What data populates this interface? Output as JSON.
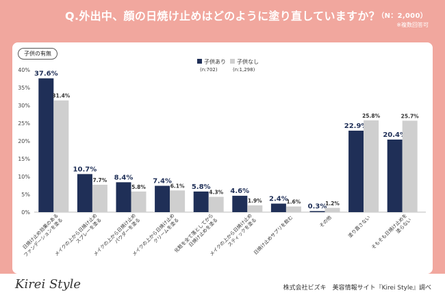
{
  "header": {
    "question": "Q.外出中、顔の日焼け止めはどのように塗り直していますか？",
    "n_label": "（N：2,000）",
    "note": "※複数回答可"
  },
  "badge": "子供の有無",
  "footer": {
    "logo": "Kirei Style",
    "credit": "株式会社ビズキ　美容情報サイト『Kirei Style』調べ"
  },
  "colors": {
    "series1": "#1f2f57",
    "series2": "#cfcfcf",
    "accent": "#f1a79e"
  },
  "chart_data": {
    "type": "bar",
    "categories": [
      "日焼け止め効果のある\nファンデーションを塗る",
      "メイクの上から日焼け止め\nスプレーを塗る",
      "メイクの上から日焼け止め\nパウダーを塗る",
      "メイクの上から日焼け止め\nクリームを塗る",
      "化粧を全て落としてから\n日焼け止めを塗る",
      "メイクの上から日焼け止め\nスティックを塗る",
      "日焼け止めサプリを飲む",
      "その他",
      "塗り直さない",
      "そもそも日焼け止めを\n塗らない"
    ],
    "series": [
      {
        "name": "子供あり",
        "sub": "(n:702)",
        "values": [
          37.6,
          10.7,
          8.4,
          7.4,
          5.8,
          4.6,
          2.4,
          0.3,
          22.9,
          20.4
        ],
        "labels": [
          "37.6%",
          "10.7%",
          "8.4%",
          "7.4%",
          "5.8%",
          "4.6%",
          "2.4%",
          "0.3%",
          "22.9%",
          "20.4%"
        ]
      },
      {
        "name": "子供なし",
        "sub": "(n:1,298)",
        "values": [
          31.4,
          7.7,
          5.8,
          6.1,
          4.3,
          1.9,
          1.6,
          1.2,
          25.8,
          25.7
        ],
        "labels": [
          "31.4%",
          "7.7%",
          "5.8%",
          "6.1%",
          "4.3%",
          "1.9%",
          "1.6%",
          "1.2%",
          "25.8%",
          "25.7%"
        ]
      }
    ],
    "yticks": [
      "0%",
      "5%",
      "10%",
      "15%",
      "20%",
      "25%",
      "30%",
      "35%",
      "40%"
    ],
    "ylim": [
      0,
      40
    ],
    "legend": "top-center",
    "grid": false
  }
}
